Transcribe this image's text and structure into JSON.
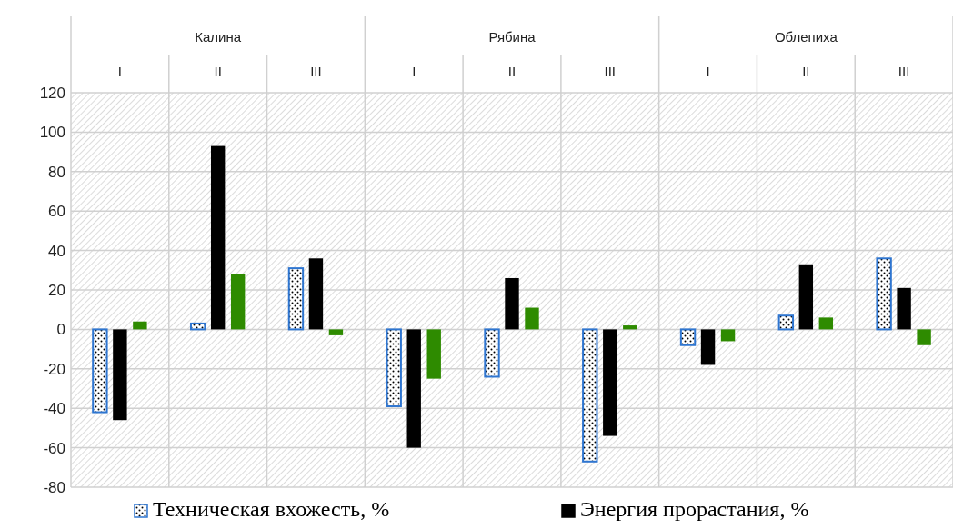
{
  "chart_data": {
    "type": "bar",
    "categories": [
      "I",
      "II",
      "III",
      "I",
      "II",
      "III",
      "I",
      "II",
      "III"
    ],
    "annotations": [
      "Калина",
      "Рябина",
      "Облепиха"
    ],
    "series": [
      {
        "name": "Техническая вхожесть, %",
        "color": "#2e75d0",
        "values": [
          -42,
          3,
          31,
          -39,
          -24,
          -67,
          -8,
          7,
          36
        ]
      },
      {
        "name": "Энергия прорастания, %",
        "color": "#000000",
        "values": [
          -46,
          93,
          36,
          -60,
          26,
          -54,
          -18,
          33,
          21
        ]
      },
      {
        "color": "#2e8b00",
        "values": [
          4,
          28,
          -3,
          -25,
          11,
          2,
          -6,
          6,
          -8
        ]
      }
    ],
    "ylim": [
      -80,
      120
    ],
    "yticks": [
      -80,
      -60,
      -40,
      -20,
      0,
      20,
      40,
      60,
      80,
      100,
      120
    ],
    "grid": true,
    "legend": "bottom"
  }
}
